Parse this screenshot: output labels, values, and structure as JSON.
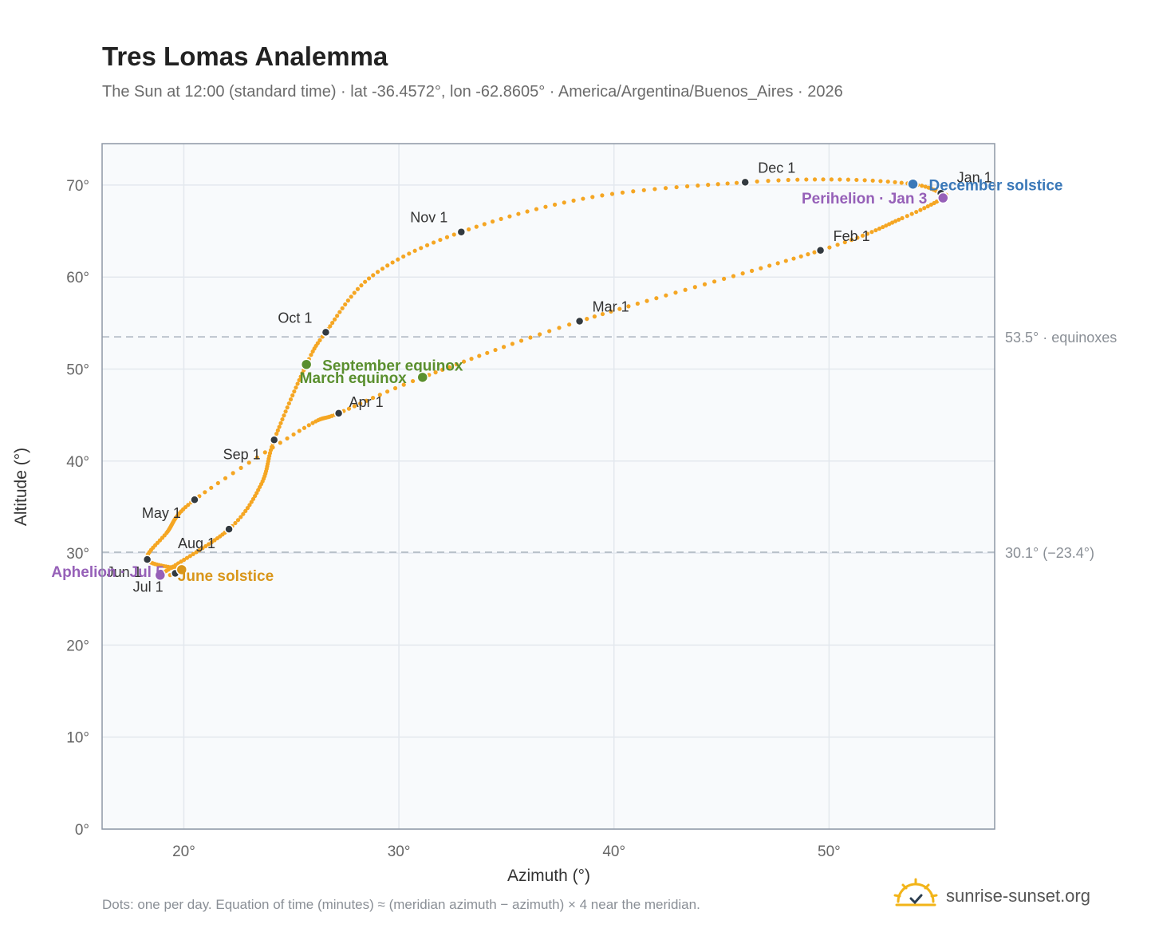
{
  "header": {
    "title": "Tres Lomas Analemma",
    "subtitle": "The Sun at 12:00 (standard time) · lat -36.4572°, lon -62.8605° · America/Argentina/Buenos_Aires · 2026"
  },
  "footer": {
    "note": "Dots: one per day. Equation of time (minutes) ≈ (meridian azimuth − azimuth) × 4 near the meridian.",
    "brand": "sunrise-sunset.org"
  },
  "colors": {
    "curve": "#f5a623",
    "month_dot": "#333a40",
    "equinox": "#5a8f2e",
    "solstice_dec": "#3a78b8",
    "solstice_jun": "#d9961a",
    "apsis": "#9660b8",
    "ref_line": "#aab4be",
    "plot_bg": "#f8fafc",
    "grid": "#e3e8ee",
    "frame": "#8d97a5"
  },
  "chart_data": {
    "type": "scatter",
    "title": "Tres Lomas Analemma",
    "xlabel": "Azimuth (°)",
    "ylabel": "Altitude (°)",
    "xlim": [
      16.2,
      57.7
    ],
    "ylim": [
      0,
      74.5
    ],
    "x_ticks": [
      20,
      30,
      40,
      50
    ],
    "x_tick_labels": [
      "20°",
      "30°",
      "40°",
      "50°"
    ],
    "y_ticks": [
      0,
      10,
      20,
      30,
      40,
      50,
      60,
      70
    ],
    "y_tick_labels": [
      "0°",
      "10°",
      "20°",
      "30°",
      "40°",
      "50°",
      "60°",
      "70°"
    ],
    "grid": true,
    "reference_lines": [
      {
        "y": 53.5,
        "label": "53.5° · equinoxes"
      },
      {
        "y": 30.1,
        "label": "30.1° (−23.4°)"
      }
    ],
    "analemma_path": [
      {
        "day": 1,
        "az": 55.2,
        "alt": 69.1
      },
      {
        "day": 3,
        "az": 55.3,
        "alt": 68.6
      },
      {
        "day": 15,
        "az": 53.4,
        "alt": 66.4
      },
      {
        "day": 32,
        "az": 49.6,
        "alt": 62.9
      },
      {
        "day": 60,
        "az": 38.4,
        "alt": 55.2
      },
      {
        "day": 79,
        "az": 31.1,
        "alt": 49.1
      },
      {
        "day": 91,
        "az": 27.2,
        "alt": 45.2
      },
      {
        "day": 105,
        "az": 25.6,
        "alt": 43.6
      },
      {
        "day": 121,
        "az": 20.5,
        "alt": 35.8
      },
      {
        "day": 140,
        "az": 19.2,
        "alt": 32.2
      },
      {
        "day": 152,
        "az": 18.3,
        "alt": 29.3
      },
      {
        "day": 172,
        "az": 19.9,
        "alt": 28.2
      },
      {
        "day": 182,
        "az": 19.6,
        "alt": 27.8
      },
      {
        "day": 186,
        "az": 18.9,
        "alt": 27.6
      },
      {
        "day": 213,
        "az": 22.1,
        "alt": 32.6
      },
      {
        "day": 228,
        "az": 23.6,
        "alt": 37.5
      },
      {
        "day": 244,
        "az": 24.2,
        "alt": 42.3
      },
      {
        "day": 265,
        "az": 25.7,
        "alt": 50.5
      },
      {
        "day": 274,
        "az": 26.6,
        "alt": 54.0
      },
      {
        "day": 290,
        "az": 28.8,
        "alt": 60.2
      },
      {
        "day": 305,
        "az": 32.9,
        "alt": 64.9
      },
      {
        "day": 320,
        "az": 39.0,
        "alt": 68.7
      },
      {
        "day": 335,
        "az": 46.1,
        "alt": 70.3
      },
      {
        "day": 345,
        "az": 50.5,
        "alt": 70.6
      },
      {
        "day": 355,
        "az": 53.9,
        "alt": 70.1
      },
      {
        "day": 365,
        "az": 55.2,
        "alt": 69.1
      }
    ],
    "month_markers": [
      {
        "label": "Jan 1",
        "az": 55.2,
        "alt": 69.1
      },
      {
        "label": "Feb 1",
        "az": 49.6,
        "alt": 62.9
      },
      {
        "label": "Mar 1",
        "az": 38.4,
        "alt": 55.2
      },
      {
        "label": "Apr 1",
        "az": 27.2,
        "alt": 45.2
      },
      {
        "label": "May 1",
        "az": 20.5,
        "alt": 35.8
      },
      {
        "label": "Jun 1",
        "az": 18.3,
        "alt": 29.3
      },
      {
        "label": "Jul 1",
        "az": 19.6,
        "alt": 27.8
      },
      {
        "label": "Aug 1",
        "az": 22.1,
        "alt": 32.6
      },
      {
        "label": "Sep 1",
        "az": 24.2,
        "alt": 42.3
      },
      {
        "label": "Oct 1",
        "az": 26.6,
        "alt": 54.0
      },
      {
        "label": "Nov 1",
        "az": 32.9,
        "alt": 64.9
      },
      {
        "label": "Dec 1",
        "az": 46.1,
        "alt": 70.3
      }
    ],
    "events": [
      {
        "label": "December solstice",
        "az": 53.9,
        "alt": 70.1,
        "kind": "solstice_dec"
      },
      {
        "label": "Perihelion · Jan 3",
        "az": 55.3,
        "alt": 68.6,
        "kind": "apsis"
      },
      {
        "label": "September equinox",
        "az": 25.7,
        "alt": 50.5,
        "kind": "equinox"
      },
      {
        "label": "March equinox",
        "az": 31.1,
        "alt": 49.1,
        "kind": "equinox"
      },
      {
        "label": "June solstice",
        "az": 19.9,
        "alt": 28.2,
        "kind": "solstice_jun"
      },
      {
        "label": "Aphelion · Jul 5",
        "az": 18.9,
        "alt": 27.6,
        "kind": "apsis"
      }
    ]
  }
}
